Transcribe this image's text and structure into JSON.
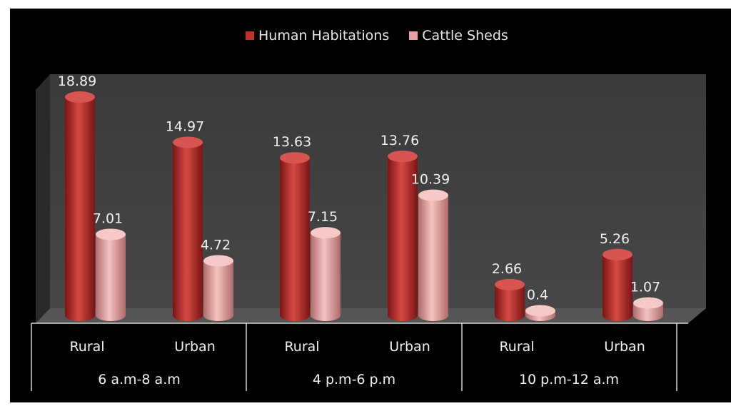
{
  "chart_data": {
    "type": "bar",
    "groups": [
      {
        "label": "6 a.m-8 a.m",
        "categories": [
          "Rural",
          "Urban"
        ]
      },
      {
        "label": "4 p.m-6 p.m",
        "categories": [
          "Rural",
          "Urban"
        ]
      },
      {
        "label": "10 p.m-12 a.m",
        "categories": [
          "Rural",
          "Urban"
        ]
      }
    ],
    "categories": [
      "Rural",
      "Urban",
      "Rural",
      "Urban",
      "Rural",
      "Urban"
    ],
    "series": [
      {
        "name": "Human Habitations",
        "values": [
          18.89,
          14.97,
          13.63,
          13.76,
          2.66,
          5.26
        ],
        "labels": [
          "18.89",
          "14.97",
          "13.63",
          "13.76",
          "2.66",
          "5.26"
        ],
        "color": "#c0302e"
      },
      {
        "name": "Cattle Sheds",
        "values": [
          7.01,
          4.72,
          7.15,
          10.39,
          0.4,
          1.07
        ],
        "labels": [
          "7.01",
          "4.72",
          "7.15",
          "10.39",
          "0.4",
          "1.07"
        ],
        "color": "#e8a0a0"
      }
    ],
    "ylim": [
      0,
      20
    ],
    "legend": "top",
    "grid": false,
    "style": "3d-cylinder"
  }
}
